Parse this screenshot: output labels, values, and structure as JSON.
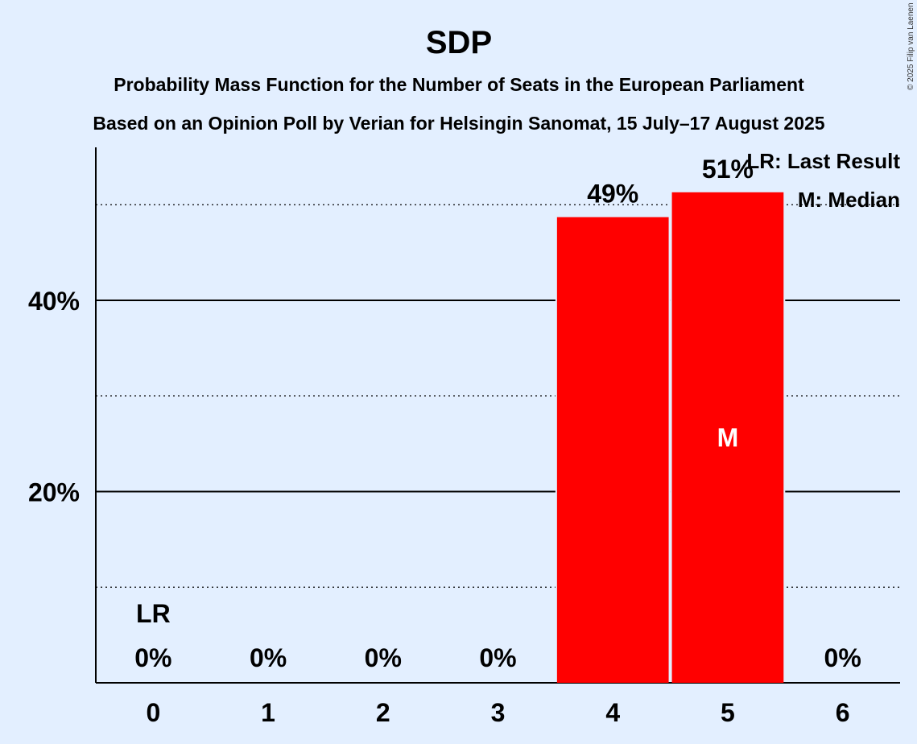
{
  "chart_data": {
    "type": "bar",
    "title": "SDP",
    "subtitle_lines": [
      "Probability Mass Function for the Number of Seats in the European Parliament",
      "Based on an Opinion Poll by Verian for Helsingin Sanomat, 15 July–17 August 2025"
    ],
    "categories": [
      "0",
      "1",
      "2",
      "3",
      "4",
      "5",
      "6"
    ],
    "values": [
      0,
      0,
      0,
      0,
      48.7,
      51.3,
      0
    ],
    "value_labels": [
      "0%",
      "0%",
      "0%",
      "0%",
      "49%",
      "51%",
      "0%"
    ],
    "ylim": [
      0,
      56
    ],
    "yticks": [
      20,
      40
    ],
    "ytick_labels": [
      "20%",
      "40%"
    ],
    "minor_gridlines": [
      10,
      30,
      50
    ],
    "bar_color": "#ff0000",
    "last_result": {
      "category": "0",
      "label": "LR"
    },
    "median": {
      "category": "5",
      "label": "M"
    },
    "legend": [
      "LR: Last Result",
      "M: Median"
    ],
    "legend_position": "top-right",
    "copyright": "© 2025 Filip van Laenen"
  }
}
